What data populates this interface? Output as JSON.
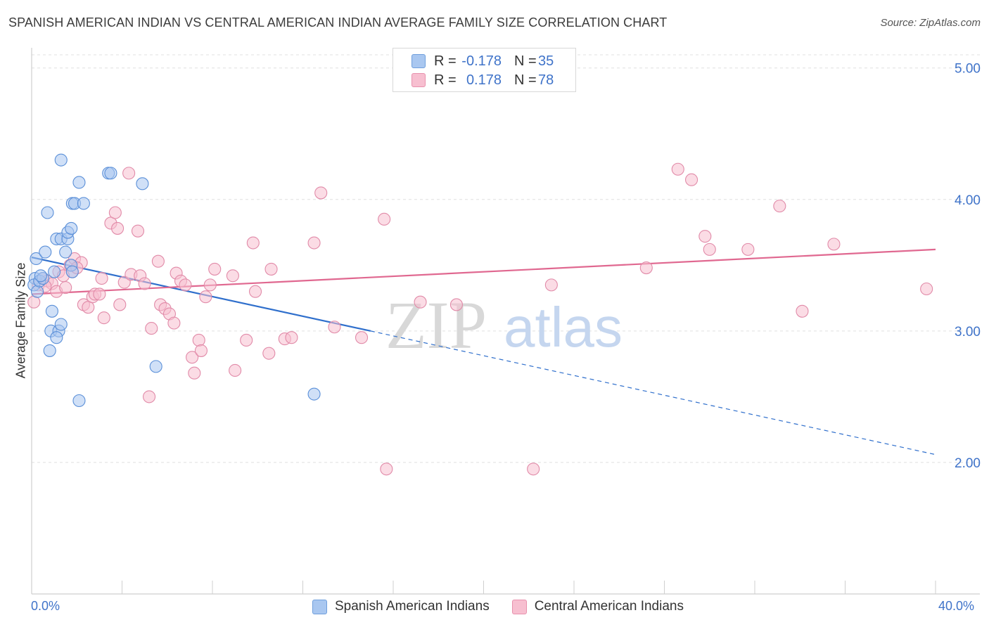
{
  "title": "SPANISH AMERICAN INDIAN VS CENTRAL AMERICAN INDIAN AVERAGE FAMILY SIZE CORRELATION CHART",
  "source": "Source: ZipAtlas.com",
  "watermark": {
    "zip": "ZIP",
    "atlas": "atlas"
  },
  "legend": {
    "rows": [
      {
        "r_label": "R =",
        "r_value": "-0.178",
        "n_label": "N =",
        "n_value": "35",
        "color": "#a9c7f0",
        "border": "#6f9fdc"
      },
      {
        "r_label": "R =",
        "r_value": "0.178",
        "n_label": "N =",
        "n_value": "78",
        "color": "#f7bfd0",
        "border": "#e891ad"
      }
    ]
  },
  "colors": {
    "blue_fill": "#a9c7f0",
    "blue_stroke": "#5a8fd8",
    "blue_line": "#2f6fcc",
    "pink_fill": "#f7bfd0",
    "pink_stroke": "#e18aa8",
    "pink_line": "#e06890",
    "tick_text": "#3f73c9",
    "grid": "#e0e0e0"
  },
  "chart_data": {
    "type": "scatter",
    "title": "SPANISH AMERICAN INDIAN VS CENTRAL AMERICAN INDIAN AVERAGE FAMILY SIZE CORRELATION CHART",
    "xlabel": "",
    "ylabel": "Average Family Size",
    "xlim": [
      0,
      40
    ],
    "ylim": [
      1.0,
      5.1
    ],
    "x_tick_labels": [
      "0.0%",
      "40.0%"
    ],
    "y_ticks": [
      2.0,
      3.0,
      4.0,
      5.0
    ],
    "y_tick_labels": [
      "2.00",
      "3.00",
      "4.00",
      "5.00"
    ],
    "grid": true,
    "legend_position": "top-center",
    "series": [
      {
        "name": "Spanish American Indians",
        "color": "blue",
        "points": [
          [
            0.2,
            3.55
          ],
          [
            0.15,
            3.4
          ],
          [
            0.1,
            3.35
          ],
          [
            0.25,
            3.3
          ],
          [
            0.35,
            3.38
          ],
          [
            0.5,
            3.4
          ],
          [
            0.6,
            3.6
          ],
          [
            0.7,
            3.9
          ],
          [
            0.8,
            2.85
          ],
          [
            0.9,
            3.15
          ],
          [
            0.85,
            3.0
          ],
          [
            1.0,
            3.45
          ],
          [
            1.1,
            3.7
          ],
          [
            1.2,
            3.0
          ],
          [
            1.1,
            2.95
          ],
          [
            1.3,
            3.05
          ],
          [
            1.3,
            3.7
          ],
          [
            1.3,
            4.3
          ],
          [
            1.5,
            3.6
          ],
          [
            1.6,
            3.7
          ],
          [
            1.6,
            3.75
          ],
          [
            1.75,
            3.78
          ],
          [
            1.75,
            3.5
          ],
          [
            1.8,
            3.45
          ],
          [
            1.8,
            3.97
          ],
          [
            1.9,
            3.97
          ],
          [
            2.1,
            4.13
          ],
          [
            2.3,
            3.97
          ],
          [
            2.1,
            2.47
          ],
          [
            3.4,
            4.2
          ],
          [
            3.5,
            4.2
          ],
          [
            4.9,
            4.12
          ],
          [
            5.5,
            2.73
          ],
          [
            12.5,
            2.52
          ],
          [
            0.4,
            3.42
          ]
        ]
      },
      {
        "name": "Central American Indians",
        "color": "pink",
        "points": [
          [
            0.1,
            3.22
          ],
          [
            0.3,
            3.35
          ],
          [
            0.5,
            3.4
          ],
          [
            0.7,
            3.38
          ],
          [
            0.9,
            3.36
          ],
          [
            1.1,
            3.3
          ],
          [
            1.2,
            3.45
          ],
          [
            1.5,
            3.33
          ],
          [
            1.7,
            3.5
          ],
          [
            1.8,
            3.45
          ],
          [
            1.9,
            3.55
          ],
          [
            2.2,
            3.52
          ],
          [
            2.3,
            3.2
          ],
          [
            2.5,
            3.18
          ],
          [
            2.7,
            3.26
          ],
          [
            2.8,
            3.28
          ],
          [
            3.1,
            3.4
          ],
          [
            3.2,
            3.1
          ],
          [
            3.5,
            3.82
          ],
          [
            3.7,
            3.9
          ],
          [
            3.8,
            3.78
          ],
          [
            3.9,
            3.2
          ],
          [
            4.1,
            3.37
          ],
          [
            4.3,
            4.2
          ],
          [
            4.4,
            3.43
          ],
          [
            4.7,
            3.76
          ],
          [
            4.8,
            3.42
          ],
          [
            5.0,
            3.36
          ],
          [
            5.2,
            2.5
          ],
          [
            5.3,
            3.02
          ],
          [
            5.6,
            3.53
          ],
          [
            5.7,
            3.2
          ],
          [
            5.9,
            3.17
          ],
          [
            6.1,
            3.13
          ],
          [
            6.3,
            3.06
          ],
          [
            6.4,
            3.44
          ],
          [
            6.6,
            3.38
          ],
          [
            6.8,
            3.35
          ],
          [
            7.1,
            2.8
          ],
          [
            7.2,
            2.68
          ],
          [
            7.4,
            2.93
          ],
          [
            7.5,
            2.85
          ],
          [
            7.7,
            3.26
          ],
          [
            7.9,
            3.35
          ],
          [
            8.1,
            3.47
          ],
          [
            8.9,
            3.42
          ],
          [
            9.0,
            2.7
          ],
          [
            9.5,
            2.93
          ],
          [
            9.8,
            3.67
          ],
          [
            9.9,
            3.3
          ],
          [
            10.5,
            2.83
          ],
          [
            10.6,
            3.47
          ],
          [
            11.2,
            2.94
          ],
          [
            11.5,
            2.95
          ],
          [
            12.5,
            3.67
          ],
          [
            12.8,
            4.05
          ],
          [
            13.4,
            3.03
          ],
          [
            14.6,
            2.95
          ],
          [
            15.6,
            3.85
          ],
          [
            15.7,
            1.95
          ],
          [
            17.2,
            3.22
          ],
          [
            18.8,
            3.2
          ],
          [
            22.2,
            1.95
          ],
          [
            23.0,
            3.35
          ],
          [
            27.2,
            3.48
          ],
          [
            28.6,
            4.23
          ],
          [
            29.2,
            4.15
          ],
          [
            29.8,
            3.72
          ],
          [
            30.0,
            3.62
          ],
          [
            31.7,
            3.62
          ],
          [
            33.1,
            3.95
          ],
          [
            34.1,
            3.15
          ],
          [
            35.5,
            3.66
          ],
          [
            39.6,
            3.32
          ],
          [
            1.4,
            3.42
          ],
          [
            2.0,
            3.48
          ],
          [
            0.6,
            3.34
          ],
          [
            3.0,
            3.28
          ]
        ]
      }
    ],
    "trend_lines": [
      {
        "series": "Spanish American Indians",
        "x": [
          0,
          15
        ],
        "y": [
          3.56,
          3.0
        ],
        "dashed_extension_to_x": 40,
        "dashed_y_end": 2.06
      },
      {
        "series": "Central American Indians",
        "x": [
          0,
          40
        ],
        "y": [
          3.28,
          3.62
        ]
      }
    ]
  },
  "axis": {
    "ylabel": "Average Family Size",
    "x_left": "0.0%",
    "x_right": "40.0%"
  },
  "bottom_legend": [
    {
      "label": "Spanish American Indians",
      "color": "#a9c7f0",
      "border": "#6f9fdc"
    },
    {
      "label": "Central American Indians",
      "color": "#f7bfd0",
      "border": "#e891ad"
    }
  ]
}
